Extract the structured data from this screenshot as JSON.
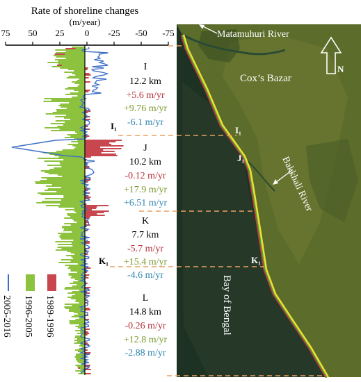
{
  "chart_title": "Rate of shoreline changes",
  "chart_units": "(m/year)",
  "axis": {
    "ticks": [
      "75",
      "50",
      "25",
      "0",
      "-25",
      "-50",
      "-75"
    ],
    "range": [
      75,
      -75
    ]
  },
  "legend": [
    {
      "label": "1989-1996",
      "color": "#c8474e"
    },
    {
      "label": "1996-2005",
      "color": "#8dc23f"
    },
    {
      "label": "2005-2016",
      "color": "#3d6fc6"
    }
  ],
  "segments": [
    {
      "id": "I",
      "length": "12.2 km",
      "rates": [
        "+5.6 m/yr",
        "+9.76 m/yr",
        "-6.1 m/yr"
      ]
    },
    {
      "id": "J",
      "length": "10.2 km",
      "rates": [
        "-0.12 m/yr",
        "+17.9 m/yr",
        "+6.51 m/yr"
      ]
    },
    {
      "id": "K",
      "length": "7.7  km",
      "rates": [
        "-5.7 m/yr",
        "+15.4  m/yr",
        "-4.6 m/yr"
      ]
    },
    {
      "id": "L",
      "length": "14.8  km",
      "rates": [
        "-0.26 m/yr",
        "+12.8 m/yr",
        "-2.88 m/yr"
      ]
    }
  ],
  "chart_markers": [
    "I₁",
    "K₁"
  ],
  "map": {
    "labels": {
      "matamuhuri": "Matamuhuri River",
      "coxs_bazar": "Cox’s Bazar",
      "bakkhali": "Bakkhali River",
      "bay": "Bay of Bengal",
      "north": "N",
      "i1": "I₁",
      "j1": "J₁",
      "k1": "K₁"
    }
  },
  "colors": {
    "rate_1989_1996": "#b5323c",
    "rate_1996_2005": "#7a9a2e",
    "rate_2005_2016": "#2f86b0",
    "land": "#5f6f2a",
    "sea": "#1f2f22",
    "shoreline": "#f0e030"
  }
}
